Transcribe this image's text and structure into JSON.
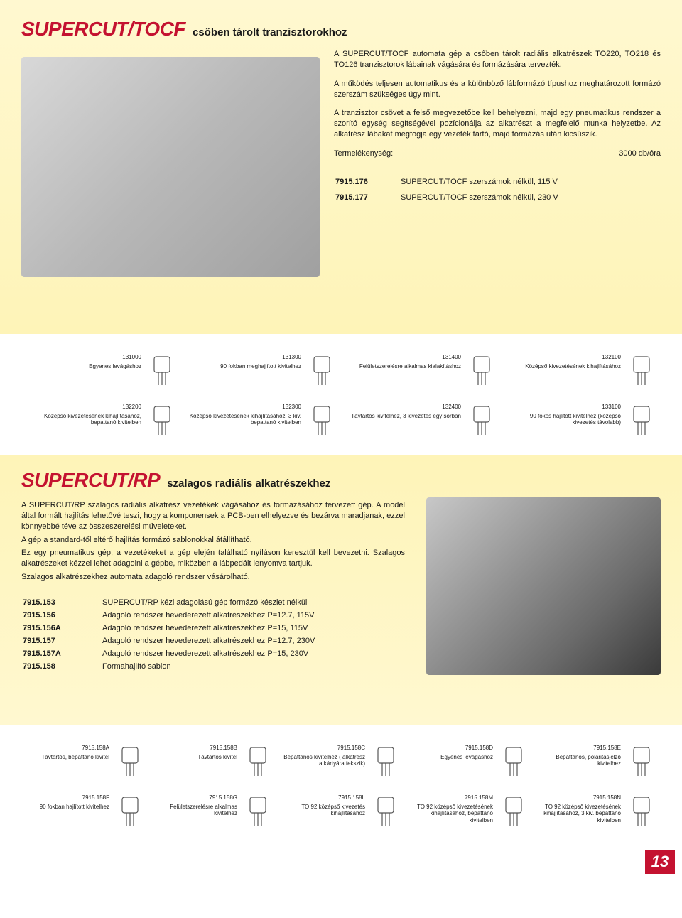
{
  "colors": {
    "accent": "#c41230",
    "bg_yellow_top": "#fff8d0",
    "bg_yellow_bottom": "#fef4b8",
    "text": "#1a1a1a"
  },
  "page_number": "13",
  "section1": {
    "title": "SUPERCUT/TOCF",
    "subtitle": "csőben tárolt tranzisztorokhoz",
    "p1": "A SUPERCUT/TOCF automata gép a csőben tárolt radiális alkatrészek TO220, TO218 és TO126 tranzisztorok lábainak vágására és formázására tervezték.",
    "p2": "A működés teljesen automatikus és a különböző lábformázó típushoz meghatározott formázó szerszám szükséges úgy mint.",
    "p3": "A tranzisztor csövet a felső megvezetőbe kell behelyezni, majd egy pneumatikus rendszer a szorító egység segítségével pozícionálja az alkatrészt a megfelelő munka helyzetbe. Az alkatrész lábakat megfogja egy vezeték tartó, majd formázás után kicsúszik.",
    "prod_label": "Termelékenység:",
    "prod_value": "3000 db/óra",
    "specs": [
      {
        "code": "7915.176",
        "desc": "SUPERCUT/TOCF szerszámok nélkül, 115 V"
      },
      {
        "code": "7915.177",
        "desc": "SUPERCUT/TOCF szerszámok nélkül, 230 V"
      }
    ]
  },
  "tools1_row1": [
    {
      "code": "131000",
      "desc": "Egyenes levágáshoz"
    },
    {
      "code": "131300",
      "desc": "90 fokban meghajlított kivitelhez"
    },
    {
      "code": "131400",
      "desc": "Felületszerelésre alkalmas kialakításhoz"
    },
    {
      "code": "132100",
      "desc": "Középső kivezetésének kihajlításához"
    }
  ],
  "tools1_row2": [
    {
      "code": "132200",
      "desc": "Középső kivezetésének kihajlításához, bepattanó kivitelben"
    },
    {
      "code": "132300",
      "desc": "Középső kivezetésének kihajlításához, 3 kiv. bepattanó kivitelben"
    },
    {
      "code": "132400",
      "desc": "Távtartós kivitelhez, 3 kivezetés egy sorban"
    },
    {
      "code": "133100",
      "desc": "90 fokos hajlított kivitelhez (középső kivezetés távolabb)"
    }
  ],
  "section2": {
    "title": "SUPERCUT/RP",
    "subtitle": "szalagos radiális alkatrészekhez",
    "p1": "A SUPERCUT/RP szalagos radiális alkatrész vezetékek vágásához és formázásához tervezett gép. A model által formált hajlítás lehetővé teszi, hogy a komponensek a PCB-ben elhelyezve és bezárva maradjanak, ezzel könnyebbé téve az összeszerelési műveleteket.",
    "p2": "A gép a standard-től eltérő hajlítás formázó sablonokkal átállítható.",
    "p3": "Ez egy pneumatikus gép, a vezetékeket a gép elején található nyíláson keresztül kell bevezetni. Szalagos alkatrészeket kézzel lehet adagolni a gépbe, miközben a lábpedált lenyomva tartjuk.",
    "p4": "Szalagos alkatrészekhez automata adagoló rendszer vásárolható.",
    "specs": [
      {
        "code": "7915.153",
        "desc": "SUPERCUT/RP kézi adagolású gép formázó készlet nélkül"
      },
      {
        "code": "7915.156",
        "desc": "Adagoló rendszer hevederezett alkatrészekhez P=12.7, 115V"
      },
      {
        "code": "7915.156A",
        "desc": "Adagoló rendszer hevederezett alkatrészekhez P=15, 115V"
      },
      {
        "code": "7915.157",
        "desc": "Adagoló rendszer hevederezett alkatrészekhez P=12.7, 230V"
      },
      {
        "code": "7915.157A",
        "desc": "Adagoló rendszer hevederezett alkatrészekhez P=15, 230V"
      },
      {
        "code": "7915.158",
        "desc": "Formahajlító sablon"
      }
    ]
  },
  "tools2_row1": [
    {
      "code": "7915.158A",
      "desc": "Távtartós, bepattanó kivitel"
    },
    {
      "code": "7915.158B",
      "desc": "Távtartós kivitel"
    },
    {
      "code": "7915.158C",
      "desc": "Bepattanós kivitelhez ( alkatrész a kártyára fekszik)"
    },
    {
      "code": "7915.158D",
      "desc": "Egyenes levágáshoz"
    },
    {
      "code": "7915.158E",
      "desc": "Bepattanós, polaritásjelző kivitelhez"
    }
  ],
  "tools2_row2": [
    {
      "code": "7915.158F",
      "desc": "90 fokban hajlított kivitelhez"
    },
    {
      "code": "7915.158G",
      "desc": "Felületszerelésre alkalmas kivitelhez"
    },
    {
      "code": "7915.158L",
      "desc": "TO 92 középső kivezetés kihajlításához"
    },
    {
      "code": "7915.158M",
      "desc": "TO 92 középső kivezetésének kihajlításához, bepattanó kivitelben"
    },
    {
      "code": "7915.158N",
      "desc": "TO 92 középső kivezetésének kihajlításához, 3 kiv. bepattanó kivitelben"
    }
  ]
}
